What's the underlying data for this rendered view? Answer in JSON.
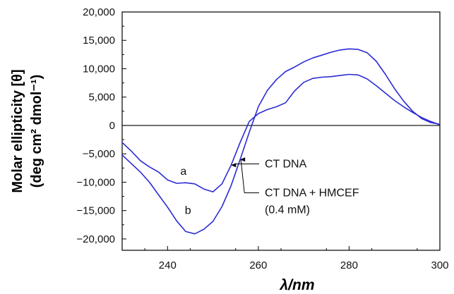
{
  "chart_data": {
    "type": "line",
    "title": "",
    "xlabel": "λ/nm",
    "ylabel_line1": "Molar ellipticity [θ]",
    "ylabel_line2": "(deg cm² dmol⁻¹)",
    "xlim": [
      230,
      300
    ],
    "ylim": [
      -22000,
      20000
    ],
    "x_ticks": [
      240,
      260,
      280,
      300
    ],
    "y_ticks": [
      20000,
      15000,
      10000,
      5000,
      0,
      -5000,
      -10000,
      -15000,
      -20000
    ],
    "x_tick_labels": [
      "240",
      "260",
      "280",
      "300"
    ],
    "y_tick_labels": [
      "20,000",
      "15,000",
      "10,000",
      "5,000",
      "0",
      "−5,000",
      "−10,000",
      "−15,000",
      "−20,000"
    ],
    "zero_line": true,
    "grid": false,
    "line_color": "#2b2bd4",
    "series": [
      {
        "name": "CT DNA",
        "curve_label": "a",
        "x": [
          230,
          232,
          234,
          236,
          238,
          240,
          242,
          244,
          246,
          248,
          250,
          252,
          254,
          256,
          258,
          260,
          262,
          264,
          266,
          268,
          270,
          272,
          274,
          276,
          278,
          280,
          282,
          284,
          286,
          288,
          290,
          292,
          294,
          296,
          298,
          300
        ],
        "y": [
          -3000,
          -4500,
          -6200,
          -7300,
          -8200,
          -9600,
          -10200,
          -10100,
          -10300,
          -11200,
          -11700,
          -10300,
          -7000,
          -3000,
          700,
          2100,
          2800,
          3300,
          4000,
          6100,
          7600,
          8300,
          8500,
          8600,
          8800,
          9000,
          8900,
          8200,
          7000,
          5700,
          4400,
          3300,
          2300,
          1400,
          700,
          100
        ]
      },
      {
        "name": "CT DNA + HMCEF (0.4 mM)",
        "curve_label": "b",
        "x": [
          230,
          232,
          234,
          236,
          238,
          240,
          242,
          244,
          246,
          248,
          250,
          252,
          254,
          256,
          258,
          260,
          262,
          264,
          266,
          268,
          270,
          272,
          274,
          276,
          278,
          280,
          282,
          284,
          286,
          288,
          290,
          292,
          294,
          296,
          298,
          300
        ],
        "y": [
          -5200,
          -6700,
          -8200,
          -10000,
          -12200,
          -14400,
          -16800,
          -18700,
          -19100,
          -18300,
          -16900,
          -14300,
          -10600,
          -6000,
          -1200,
          3300,
          6200,
          8100,
          9500,
          10300,
          11200,
          11900,
          12400,
          12900,
          13300,
          13500,
          13400,
          12800,
          11300,
          9000,
          6500,
          4300,
          2500,
          1200,
          500,
          200
        ]
      }
    ],
    "annotations": [
      {
        "text": "CT DNA",
        "series": 0,
        "arrow_x": 254
      },
      {
        "text": "CT DNA + HMCEF",
        "text2": "(0.4 mM)",
        "series": 1,
        "arrow_x": 256
      }
    ]
  }
}
